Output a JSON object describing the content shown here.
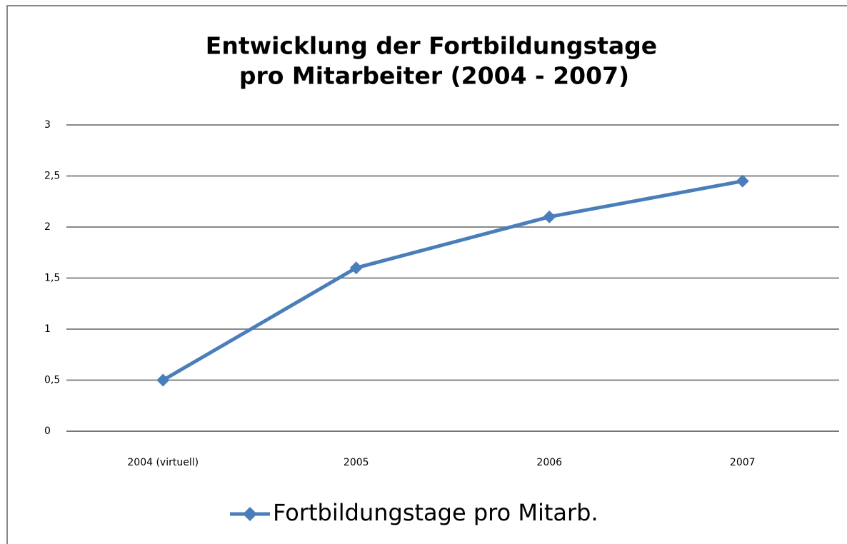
{
  "chart_data": {
    "type": "line",
    "title": [
      "Entwicklung der Fortbildungstage",
      "pro Mitarbeiter (2004 - 2007)"
    ],
    "categories": [
      "2004 (virtuell)",
      "2005",
      "2006",
      "2007"
    ],
    "series": [
      {
        "name": "Fortbildungstage pro Mitarb.",
        "color": "#4a7ebb",
        "values": [
          0.5,
          1.6,
          2.1,
          2.45
        ]
      }
    ],
    "ylim": [
      0,
      3
    ],
    "yticks": [
      0,
      {
        "value": 0.5,
        "label": "0,5"
      },
      1,
      {
        "value": 1.5,
        "label": "1,5"
      },
      2,
      {
        "value": 2.5,
        "label": "2,5"
      },
      3
    ],
    "grid": true,
    "legend": "bottom"
  }
}
